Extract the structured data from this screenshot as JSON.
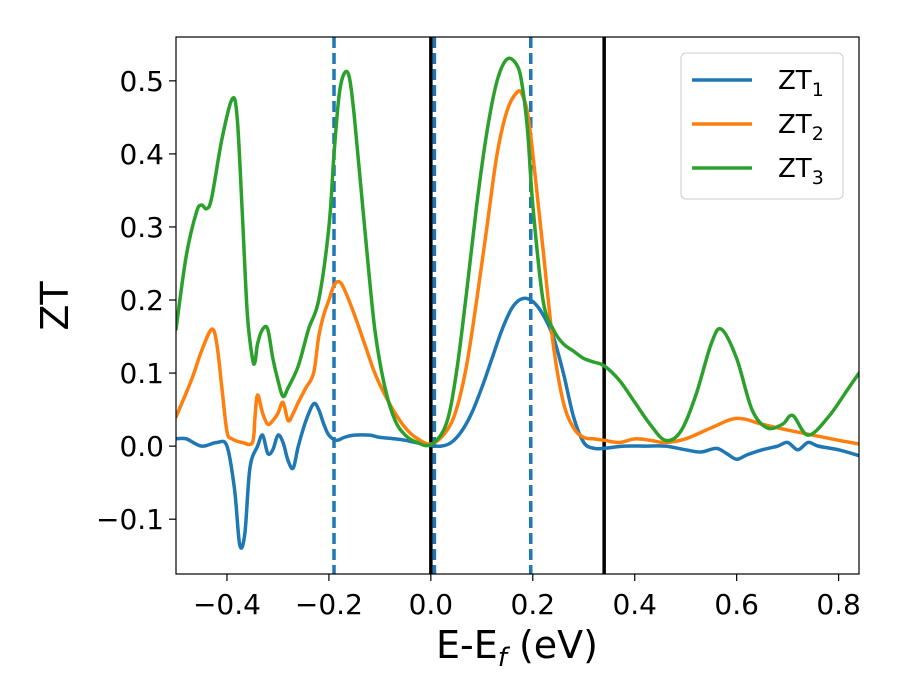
{
  "chart_data": {
    "type": "line",
    "xlabel": "E-E$_f$ (eV)",
    "xlabel_main": "E-E",
    "xlabel_sub": "f",
    "xlabel_unit": " (eV)",
    "ylabel": "ZT",
    "xlim": [
      -0.5,
      0.84
    ],
    "ylim": [
      -0.175,
      0.56
    ],
    "xticks": [
      -0.4,
      -0.2,
      0.0,
      0.2,
      0.4,
      0.6,
      0.8
    ],
    "xtick_labels": [
      "−0.4",
      "−0.2",
      "0.0",
      "0.2",
      "0.4",
      "0.6",
      "0.8"
    ],
    "yticks": [
      -0.1,
      0.0,
      0.1,
      0.2,
      0.3,
      0.4,
      0.5
    ],
    "ytick_labels": [
      "−0.1",
      "0.0",
      "0.1",
      "0.2",
      "0.3",
      "0.4",
      "0.5"
    ],
    "grid": false,
    "legend_position": "top-right",
    "vlines": [
      {
        "x": -0.19,
        "style": "dashed",
        "color": "#1f77b4"
      },
      {
        "x": 0.007,
        "style": "dashed",
        "color": "#1f77b4"
      },
      {
        "x": 0.196,
        "style": "dashed",
        "color": "#1f77b4"
      },
      {
        "x": 0.0,
        "style": "solid",
        "color": "#000000"
      },
      {
        "x": 0.34,
        "style": "solid",
        "color": "#000000"
      }
    ],
    "series": [
      {
        "name": "ZT1",
        "label_main": "ZT",
        "label_sub": "1",
        "color": "#1f77b4",
        "x": [
          -0.5,
          -0.48,
          -0.45,
          -0.42,
          -0.4,
          -0.385,
          -0.375,
          -0.365,
          -0.355,
          -0.34,
          -0.33,
          -0.32,
          -0.31,
          -0.3,
          -0.29,
          -0.28,
          -0.27,
          -0.26,
          -0.245,
          -0.23,
          -0.22,
          -0.21,
          -0.2,
          -0.185,
          -0.17,
          -0.15,
          -0.12,
          -0.1,
          -0.07,
          -0.05,
          -0.03,
          0.0,
          0.02,
          0.04,
          0.06,
          0.08,
          0.1,
          0.12,
          0.14,
          0.16,
          0.18,
          0.2,
          0.22,
          0.24,
          0.26,
          0.28,
          0.3,
          0.32,
          0.34,
          0.38,
          0.42,
          0.46,
          0.5,
          0.53,
          0.56,
          0.58,
          0.6,
          0.62,
          0.65,
          0.68,
          0.7,
          0.72,
          0.74,
          0.76,
          0.8,
          0.84
        ],
        "y": [
          0.01,
          0.01,
          0.0,
          0.005,
          0.0,
          -0.06,
          -0.135,
          -0.12,
          -0.03,
          0.0,
          0.015,
          -0.01,
          -0.005,
          0.015,
          0.005,
          -0.02,
          -0.03,
          0.0,
          0.035,
          0.058,
          0.05,
          0.03,
          0.015,
          0.008,
          0.012,
          0.015,
          0.015,
          0.012,
          0.01,
          0.008,
          0.005,
          0.001,
          0.0,
          0.005,
          0.02,
          0.045,
          0.08,
          0.12,
          0.16,
          0.19,
          0.202,
          0.198,
          0.18,
          0.15,
          0.1,
          0.04,
          0.005,
          -0.003,
          -0.003,
          0.0,
          0.0,
          0.0,
          -0.005,
          -0.008,
          -0.003,
          -0.01,
          -0.018,
          -0.012,
          -0.005,
          0.0,
          0.005,
          -0.005,
          0.005,
          0.0,
          -0.005,
          -0.013
        ]
      },
      {
        "name": "ZT2",
        "label_main": "ZT",
        "label_sub": "2",
        "color": "#ff7f0e",
        "x": [
          -0.5,
          -0.47,
          -0.45,
          -0.43,
          -0.42,
          -0.41,
          -0.4,
          -0.39,
          -0.37,
          -0.35,
          -0.345,
          -0.34,
          -0.33,
          -0.32,
          -0.31,
          -0.3,
          -0.29,
          -0.28,
          -0.27,
          -0.26,
          -0.245,
          -0.23,
          -0.22,
          -0.21,
          -0.2,
          -0.19,
          -0.18,
          -0.17,
          -0.15,
          -0.13,
          -0.11,
          -0.09,
          -0.07,
          -0.05,
          -0.03,
          0.0,
          0.03,
          0.05,
          0.07,
          0.09,
          0.11,
          0.13,
          0.15,
          0.17,
          0.18,
          0.19,
          0.2,
          0.22,
          0.24,
          0.26,
          0.28,
          0.3,
          0.32,
          0.34,
          0.37,
          0.4,
          0.43,
          0.46,
          0.5,
          0.55,
          0.6,
          0.65,
          0.7,
          0.75,
          0.8,
          0.84
        ],
        "y": [
          0.04,
          0.09,
          0.13,
          0.16,
          0.14,
          0.08,
          0.02,
          0.01,
          0.005,
          0.005,
          0.04,
          0.07,
          0.045,
          0.03,
          0.035,
          0.045,
          0.06,
          0.035,
          0.045,
          0.06,
          0.08,
          0.1,
          0.15,
          0.18,
          0.2,
          0.22,
          0.225,
          0.215,
          0.18,
          0.14,
          0.1,
          0.07,
          0.045,
          0.025,
          0.012,
          0.003,
          0.02,
          0.05,
          0.11,
          0.2,
          0.3,
          0.4,
          0.46,
          0.485,
          0.48,
          0.455,
          0.4,
          0.27,
          0.14,
          0.06,
          0.025,
          0.012,
          0.01,
          0.008,
          0.005,
          0.01,
          0.008,
          0.005,
          0.01,
          0.025,
          0.038,
          0.03,
          0.022,
          0.015,
          0.008,
          0.003
        ]
      },
      {
        "name": "ZT3",
        "label_main": "ZT",
        "label_sub": "3",
        "color": "#2ca02c",
        "x": [
          -0.5,
          -0.48,
          -0.46,
          -0.45,
          -0.44,
          -0.43,
          -0.41,
          -0.39,
          -0.38,
          -0.37,
          -0.36,
          -0.35,
          -0.345,
          -0.34,
          -0.33,
          -0.32,
          -0.31,
          -0.3,
          -0.29,
          -0.28,
          -0.26,
          -0.24,
          -0.22,
          -0.2,
          -0.19,
          -0.18,
          -0.17,
          -0.16,
          -0.15,
          -0.13,
          -0.11,
          -0.09,
          -0.07,
          -0.05,
          -0.03,
          0.0,
          0.03,
          0.05,
          0.07,
          0.09,
          0.11,
          0.13,
          0.15,
          0.17,
          0.18,
          0.19,
          0.2,
          0.22,
          0.24,
          0.26,
          0.28,
          0.3,
          0.32,
          0.34,
          0.37,
          0.4,
          0.43,
          0.46,
          0.49,
          0.52,
          0.55,
          0.57,
          0.6,
          0.63,
          0.66,
          0.69,
          0.71,
          0.74,
          0.78,
          0.82,
          0.84
        ],
        "y": [
          0.16,
          0.26,
          0.32,
          0.33,
          0.325,
          0.34,
          0.42,
          0.475,
          0.45,
          0.32,
          0.18,
          0.12,
          0.115,
          0.14,
          0.16,
          0.16,
          0.12,
          0.09,
          0.068,
          0.08,
          0.11,
          0.16,
          0.2,
          0.3,
          0.4,
          0.48,
          0.51,
          0.505,
          0.45,
          0.3,
          0.16,
          0.08,
          0.035,
          0.015,
          0.006,
          0.002,
          0.03,
          0.1,
          0.21,
          0.33,
          0.43,
          0.5,
          0.53,
          0.52,
          0.49,
          0.43,
          0.33,
          0.2,
          0.16,
          0.14,
          0.13,
          0.12,
          0.115,
          0.11,
          0.09,
          0.06,
          0.03,
          0.008,
          0.02,
          0.07,
          0.14,
          0.16,
          0.12,
          0.05,
          0.025,
          0.03,
          0.042,
          0.015,
          0.04,
          0.08,
          0.1
        ]
      }
    ]
  }
}
